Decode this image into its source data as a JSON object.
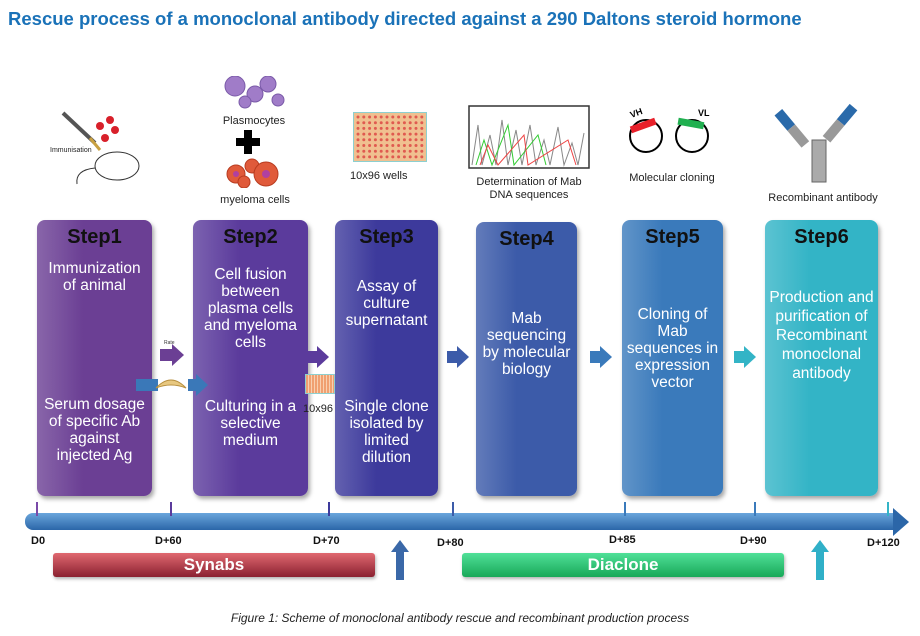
{
  "title": "Rescue process of a monoclonal antibody directed against a 290 Daltons steroid hormone",
  "illustrations": {
    "immunisation": "Immunisation",
    "plasmocytes": "Plasmocytes",
    "myeloma": "myeloma cells",
    "wells": "10x96 wells",
    "sequencing": "Determination of Mab DNA sequences",
    "cloning": "Molecular cloning",
    "vh": "VH",
    "vl": "VL",
    "recombinant": "Recombinant antibody",
    "rate": "Rate",
    "plate_small": "10x96"
  },
  "steps": [
    {
      "title": "Step1",
      "text1": "Immunization of animal",
      "text2": "Serum dosage of specific Ab against injected Ag",
      "color": "#6b3f94"
    },
    {
      "title": "Step2",
      "text1": "Cell fusion between plasma cells and myeloma cells",
      "text2": "Culturing in a selective medium",
      "color": "#5b3b9c"
    },
    {
      "title": "Step3",
      "text1": "Assay of culture supernatant",
      "text2": "Single clone isolated by limited dilution",
      "color": "#3d3a9c"
    },
    {
      "title": "Step4",
      "text1": "Mab sequencing by molecular biology",
      "color": "#3c5ba9"
    },
    {
      "title": "Step5",
      "text1": "Cloning of Mab sequences in expression vector",
      "color": "#3a7abb"
    },
    {
      "title": "Step6",
      "text1": "Production and purification of Recombinant monoclonal antibody",
      "color": "#33b4c6"
    }
  ],
  "timeline": [
    "D0",
    "D+60",
    "D+70",
    "D+80",
    "D+85",
    "D+90",
    "D+120"
  ],
  "bands": [
    {
      "label": "Synabs",
      "color": "#9b2a35"
    },
    {
      "label": "Diaclone",
      "color": "#1fb466"
    }
  ],
  "caption": "Figure 1: Scheme of monoclonal antibody rescue and recombinant production process"
}
